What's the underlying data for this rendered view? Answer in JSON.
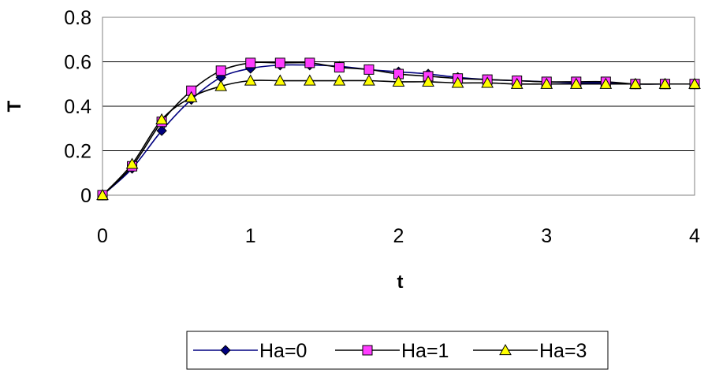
{
  "chart_data": {
    "type": "line",
    "title": "",
    "xlabel": "t",
    "ylabel": "T",
    "xlim": [
      0,
      4
    ],
    "ylim": [
      0,
      0.8
    ],
    "x_ticks": [
      "0",
      "1",
      "2",
      "3",
      "4"
    ],
    "y_ticks": [
      "0",
      "0.2",
      "0.4",
      "0.6",
      "0.8"
    ],
    "grid": "horizontal",
    "legend_position": "bottom-center",
    "x": [
      0,
      0.2,
      0.4,
      0.6,
      0.8,
      1.0,
      1.2,
      1.4,
      1.6,
      1.8,
      2.0,
      2.2,
      2.4,
      2.6,
      2.8,
      3.0,
      3.2,
      3.4,
      3.6,
      3.8,
      4.0
    ],
    "series": [
      {
        "name": "Ha=0",
        "color": "#000080",
        "marker": "diamond",
        "marker_fill": "#000080",
        "values": [
          0,
          0.12,
          0.29,
          0.43,
          0.53,
          0.57,
          0.585,
          0.585,
          0.58,
          0.565,
          0.555,
          0.545,
          0.53,
          0.52,
          0.515,
          0.51,
          0.505,
          0.505,
          0.5,
          0.5,
          0.5
        ]
      },
      {
        "name": "Ha=1",
        "color": "#000000",
        "marker": "square",
        "marker_fill": "#ff3cff",
        "values": [
          0,
          0.13,
          0.33,
          0.47,
          0.56,
          0.595,
          0.595,
          0.595,
          0.575,
          0.565,
          0.545,
          0.535,
          0.525,
          0.52,
          0.515,
          0.51,
          0.51,
          0.51,
          0.5,
          0.5,
          0.5
        ]
      },
      {
        "name": "Ha=3",
        "color": "#000000",
        "marker": "triangle",
        "marker_fill": "#ffff00",
        "values": [
          0,
          0.14,
          0.34,
          0.44,
          0.49,
          0.515,
          0.515,
          0.515,
          0.515,
          0.515,
          0.51,
          0.51,
          0.505,
          0.505,
          0.5,
          0.5,
          0.5,
          0.5,
          0.5,
          0.5,
          0.5
        ]
      }
    ]
  }
}
